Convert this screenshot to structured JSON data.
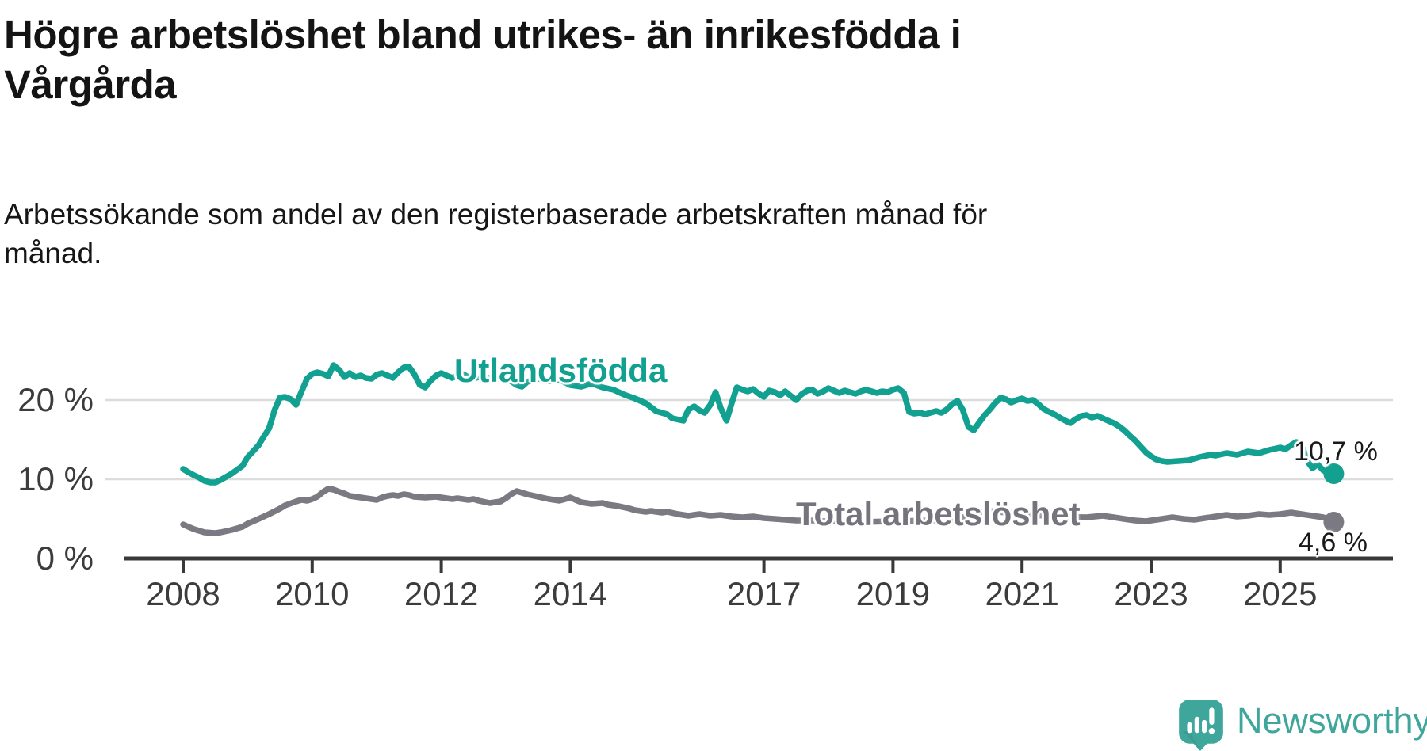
{
  "header": {
    "title": "Högre arbetslöshet bland utrikes- än inrikesfödda i\nVårgårda",
    "subtitle": "Arbetssökande som andel av den registerbaserade arbetskraften månad för\nmånad."
  },
  "chart_data": {
    "type": "line",
    "unit": "%",
    "grid": "horizontal",
    "x_start": 2008,
    "x_end": 2025.83,
    "ylim": [
      0,
      26
    ],
    "x_ticks": [
      2008,
      2010,
      2012,
      2014,
      2017,
      2019,
      2021,
      2023,
      2025
    ],
    "y_ticks": [
      {
        "value": 0,
        "label": "0 %"
      },
      {
        "value": 10,
        "label": "10 %"
      },
      {
        "value": 20,
        "label": "20 %"
      }
    ],
    "series": [
      {
        "name": "Utlandsfödda",
        "color": "#12a091",
        "end_label": "10,7 %",
        "end_value": 10.7,
        "points": [
          [
            2008.0,
            11.3
          ],
          [
            2008.08,
            10.9
          ],
          [
            2008.17,
            10.5
          ],
          [
            2008.25,
            10.2
          ],
          [
            2008.33,
            9.8
          ],
          [
            2008.42,
            9.6
          ],
          [
            2008.5,
            9.6
          ],
          [
            2008.58,
            9.9
          ],
          [
            2008.75,
            10.7
          ],
          [
            2008.92,
            11.7
          ],
          [
            2009.0,
            12.8
          ],
          [
            2009.08,
            13.5
          ],
          [
            2009.17,
            14.3
          ],
          [
            2009.25,
            15.4
          ],
          [
            2009.33,
            16.4
          ],
          [
            2009.42,
            18.8
          ],
          [
            2009.5,
            20.3
          ],
          [
            2009.58,
            20.4
          ],
          [
            2009.67,
            20.1
          ],
          [
            2009.75,
            19.4
          ],
          [
            2009.83,
            21.0
          ],
          [
            2009.92,
            22.7
          ],
          [
            2010.0,
            23.3
          ],
          [
            2010.08,
            23.5
          ],
          [
            2010.17,
            23.3
          ],
          [
            2010.25,
            23.0
          ],
          [
            2010.33,
            24.4
          ],
          [
            2010.42,
            23.8
          ],
          [
            2010.5,
            22.9
          ],
          [
            2010.58,
            23.4
          ],
          [
            2010.67,
            22.9
          ],
          [
            2010.75,
            23.1
          ],
          [
            2010.83,
            22.8
          ],
          [
            2010.92,
            22.7
          ],
          [
            2011.0,
            23.2
          ],
          [
            2011.08,
            23.4
          ],
          [
            2011.17,
            23.1
          ],
          [
            2011.25,
            22.8
          ],
          [
            2011.33,
            23.5
          ],
          [
            2011.42,
            24.1
          ],
          [
            2011.5,
            24.2
          ],
          [
            2011.58,
            23.3
          ],
          [
            2011.67,
            21.9
          ],
          [
            2011.75,
            21.6
          ],
          [
            2011.83,
            22.4
          ],
          [
            2011.92,
            23.1
          ],
          [
            2012.0,
            23.4
          ],
          [
            2012.08,
            23.1
          ],
          [
            2012.17,
            22.8
          ],
          [
            2012.25,
            23.1
          ],
          [
            2012.33,
            23.3
          ],
          [
            2012.42,
            22.9
          ],
          [
            2012.5,
            22.7
          ],
          [
            2012.58,
            22.9
          ],
          [
            2012.75,
            22.8
          ],
          [
            2012.92,
            23.0
          ],
          [
            2013.0,
            22.8
          ],
          [
            2013.17,
            21.9
          ],
          [
            2013.25,
            21.7
          ],
          [
            2013.33,
            22.3
          ],
          [
            2013.5,
            22.7
          ],
          [
            2013.67,
            22.4
          ],
          [
            2013.83,
            22.6
          ],
          [
            2014.0,
            21.9
          ],
          [
            2014.17,
            21.7
          ],
          [
            2014.33,
            22.1
          ],
          [
            2014.5,
            21.6
          ],
          [
            2014.67,
            21.3
          ],
          [
            2014.83,
            20.7
          ],
          [
            2015.0,
            20.2
          ],
          [
            2015.17,
            19.6
          ],
          [
            2015.33,
            18.6
          ],
          [
            2015.5,
            18.2
          ],
          [
            2015.58,
            17.7
          ],
          [
            2015.75,
            17.4
          ],
          [
            2015.83,
            18.8
          ],
          [
            2015.92,
            19.2
          ],
          [
            2016.0,
            18.7
          ],
          [
            2016.08,
            18.4
          ],
          [
            2016.17,
            19.4
          ],
          [
            2016.25,
            21.0
          ],
          [
            2016.33,
            19.0
          ],
          [
            2016.42,
            17.4
          ],
          [
            2016.5,
            19.6
          ],
          [
            2016.58,
            21.6
          ],
          [
            2016.67,
            21.3
          ],
          [
            2016.75,
            21.1
          ],
          [
            2016.83,
            21.4
          ],
          [
            2016.92,
            20.8
          ],
          [
            2017.0,
            20.4
          ],
          [
            2017.08,
            21.2
          ],
          [
            2017.17,
            21.0
          ],
          [
            2017.25,
            20.6
          ],
          [
            2017.33,
            21.1
          ],
          [
            2017.42,
            20.5
          ],
          [
            2017.5,
            20.0
          ],
          [
            2017.58,
            20.7
          ],
          [
            2017.67,
            21.2
          ],
          [
            2017.75,
            21.3
          ],
          [
            2017.83,
            20.8
          ],
          [
            2017.92,
            21.1
          ],
          [
            2018.0,
            21.5
          ],
          [
            2018.08,
            21.2
          ],
          [
            2018.17,
            20.9
          ],
          [
            2018.25,
            21.2
          ],
          [
            2018.33,
            21.0
          ],
          [
            2018.42,
            20.8
          ],
          [
            2018.5,
            21.1
          ],
          [
            2018.58,
            21.3
          ],
          [
            2018.67,
            21.1
          ],
          [
            2018.75,
            20.9
          ],
          [
            2018.83,
            21.1
          ],
          [
            2018.92,
            21.0
          ],
          [
            2019.0,
            21.3
          ],
          [
            2019.08,
            21.5
          ],
          [
            2019.17,
            20.9
          ],
          [
            2019.25,
            18.5
          ],
          [
            2019.33,
            18.3
          ],
          [
            2019.42,
            18.4
          ],
          [
            2019.5,
            18.2
          ],
          [
            2019.58,
            18.4
          ],
          [
            2019.67,
            18.6
          ],
          [
            2019.75,
            18.4
          ],
          [
            2019.83,
            18.8
          ],
          [
            2019.92,
            19.5
          ],
          [
            2020.0,
            19.9
          ],
          [
            2020.08,
            18.8
          ],
          [
            2020.17,
            16.6
          ],
          [
            2020.25,
            16.2
          ],
          [
            2020.33,
            17.1
          ],
          [
            2020.42,
            18.1
          ],
          [
            2020.5,
            18.8
          ],
          [
            2020.58,
            19.6
          ],
          [
            2020.67,
            20.3
          ],
          [
            2020.75,
            20.1
          ],
          [
            2020.83,
            19.7
          ],
          [
            2020.92,
            20.0
          ],
          [
            2021.0,
            20.2
          ],
          [
            2021.08,
            19.9
          ],
          [
            2021.17,
            20.0
          ],
          [
            2021.25,
            19.5
          ],
          [
            2021.33,
            18.9
          ],
          [
            2021.42,
            18.5
          ],
          [
            2021.5,
            18.2
          ],
          [
            2021.58,
            17.8
          ],
          [
            2021.67,
            17.4
          ],
          [
            2021.75,
            17.1
          ],
          [
            2021.83,
            17.6
          ],
          [
            2021.92,
            18.0
          ],
          [
            2022.0,
            18.1
          ],
          [
            2022.08,
            17.8
          ],
          [
            2022.17,
            18.0
          ],
          [
            2022.25,
            17.7
          ],
          [
            2022.33,
            17.4
          ],
          [
            2022.42,
            17.1
          ],
          [
            2022.5,
            16.7
          ],
          [
            2022.58,
            16.2
          ],
          [
            2022.67,
            15.5
          ],
          [
            2022.75,
            14.9
          ],
          [
            2022.83,
            14.2
          ],
          [
            2022.92,
            13.4
          ],
          [
            2023.0,
            12.9
          ],
          [
            2023.08,
            12.5
          ],
          [
            2023.17,
            12.3
          ],
          [
            2023.25,
            12.2
          ],
          [
            2023.42,
            12.3
          ],
          [
            2023.58,
            12.4
          ],
          [
            2023.75,
            12.8
          ],
          [
            2023.92,
            13.1
          ],
          [
            2024.0,
            13.0
          ],
          [
            2024.17,
            13.3
          ],
          [
            2024.33,
            13.1
          ],
          [
            2024.5,
            13.5
          ],
          [
            2024.67,
            13.3
          ],
          [
            2024.83,
            13.7
          ],
          [
            2025.0,
            14.0
          ],
          [
            2025.08,
            13.8
          ],
          [
            2025.17,
            14.3
          ],
          [
            2025.25,
            14.7
          ],
          [
            2025.33,
            14.4
          ],
          [
            2025.42,
            12.3
          ],
          [
            2025.5,
            11.4
          ],
          [
            2025.58,
            11.9
          ],
          [
            2025.67,
            11.1
          ],
          [
            2025.75,
            11.0
          ],
          [
            2025.83,
            10.7
          ]
        ]
      },
      {
        "name": "Total arbetslöshet",
        "color": "#7b7a82",
        "end_label": "4,6 %",
        "end_value": 4.6,
        "points": [
          [
            2008.0,
            4.3
          ],
          [
            2008.08,
            4.0
          ],
          [
            2008.17,
            3.7
          ],
          [
            2008.25,
            3.5
          ],
          [
            2008.33,
            3.3
          ],
          [
            2008.5,
            3.2
          ],
          [
            2008.58,
            3.3
          ],
          [
            2008.75,
            3.6
          ],
          [
            2008.92,
            4.0
          ],
          [
            2009.0,
            4.4
          ],
          [
            2009.17,
            5.0
          ],
          [
            2009.33,
            5.6
          ],
          [
            2009.5,
            6.3
          ],
          [
            2009.58,
            6.7
          ],
          [
            2009.75,
            7.2
          ],
          [
            2009.83,
            7.4
          ],
          [
            2009.92,
            7.3
          ],
          [
            2010.0,
            7.5
          ],
          [
            2010.08,
            7.8
          ],
          [
            2010.17,
            8.4
          ],
          [
            2010.25,
            8.8
          ],
          [
            2010.33,
            8.7
          ],
          [
            2010.42,
            8.4
          ],
          [
            2010.5,
            8.2
          ],
          [
            2010.58,
            7.9
          ],
          [
            2010.75,
            7.7
          ],
          [
            2010.92,
            7.5
          ],
          [
            2011.0,
            7.4
          ],
          [
            2011.08,
            7.7
          ],
          [
            2011.17,
            7.9
          ],
          [
            2011.25,
            8.0
          ],
          [
            2011.33,
            7.9
          ],
          [
            2011.42,
            8.1
          ],
          [
            2011.5,
            8.0
          ],
          [
            2011.58,
            7.8
          ],
          [
            2011.75,
            7.7
          ],
          [
            2011.92,
            7.8
          ],
          [
            2012.0,
            7.7
          ],
          [
            2012.17,
            7.5
          ],
          [
            2012.25,
            7.6
          ],
          [
            2012.42,
            7.4
          ],
          [
            2012.5,
            7.5
          ],
          [
            2012.58,
            7.3
          ],
          [
            2012.75,
            7.0
          ],
          [
            2012.92,
            7.2
          ],
          [
            2013.0,
            7.6
          ],
          [
            2013.08,
            8.1
          ],
          [
            2013.17,
            8.5
          ],
          [
            2013.25,
            8.3
          ],
          [
            2013.33,
            8.1
          ],
          [
            2013.5,
            7.8
          ],
          [
            2013.67,
            7.5
          ],
          [
            2013.83,
            7.3
          ],
          [
            2013.92,
            7.5
          ],
          [
            2014.0,
            7.7
          ],
          [
            2014.08,
            7.4
          ],
          [
            2014.17,
            7.1
          ],
          [
            2014.33,
            6.9
          ],
          [
            2014.5,
            7.0
          ],
          [
            2014.58,
            6.8
          ],
          [
            2014.75,
            6.6
          ],
          [
            2014.92,
            6.3
          ],
          [
            2015.0,
            6.1
          ],
          [
            2015.17,
            5.9
          ],
          [
            2015.25,
            6.0
          ],
          [
            2015.42,
            5.8
          ],
          [
            2015.5,
            5.9
          ],
          [
            2015.67,
            5.6
          ],
          [
            2015.83,
            5.4
          ],
          [
            2016.0,
            5.6
          ],
          [
            2016.17,
            5.4
          ],
          [
            2016.33,
            5.5
          ],
          [
            2016.5,
            5.3
          ],
          [
            2016.67,
            5.2
          ],
          [
            2016.83,
            5.3
          ],
          [
            2017.0,
            5.1
          ],
          [
            2017.17,
            5.0
          ],
          [
            2017.33,
            4.9
          ],
          [
            2017.5,
            4.8
          ],
          [
            2017.75,
            4.8
          ],
          [
            2018.0,
            4.7
          ],
          [
            2018.5,
            4.6
          ],
          [
            2019.0,
            4.7
          ],
          [
            2019.5,
            4.8
          ],
          [
            2020.0,
            4.9
          ],
          [
            2020.25,
            5.8
          ],
          [
            2020.5,
            6.0
          ],
          [
            2020.75,
            5.8
          ],
          [
            2021.0,
            5.6
          ],
          [
            2021.5,
            5.3
          ],
          [
            2022.0,
            5.2
          ],
          [
            2022.25,
            5.4
          ],
          [
            2022.42,
            5.2
          ],
          [
            2022.58,
            5.0
          ],
          [
            2022.75,
            4.8
          ],
          [
            2022.92,
            4.7
          ],
          [
            2023.0,
            4.8
          ],
          [
            2023.17,
            5.0
          ],
          [
            2023.33,
            5.2
          ],
          [
            2023.5,
            5.0
          ],
          [
            2023.67,
            4.9
          ],
          [
            2023.83,
            5.1
          ],
          [
            2024.0,
            5.3
          ],
          [
            2024.17,
            5.5
          ],
          [
            2024.33,
            5.3
          ],
          [
            2024.5,
            5.4
          ],
          [
            2024.67,
            5.6
          ],
          [
            2024.83,
            5.5
          ],
          [
            2025.0,
            5.6
          ],
          [
            2025.17,
            5.8
          ],
          [
            2025.33,
            5.6
          ],
          [
            2025.5,
            5.4
          ],
          [
            2025.67,
            5.2
          ],
          [
            2025.83,
            4.6
          ]
        ]
      }
    ],
    "colors": {
      "gridline": "#dcdcdc",
      "axis": "#39393b",
      "tick_text": "#3c3c3c"
    }
  },
  "logo": {
    "text": "Newsworthy",
    "color": "#3fa69b"
  }
}
